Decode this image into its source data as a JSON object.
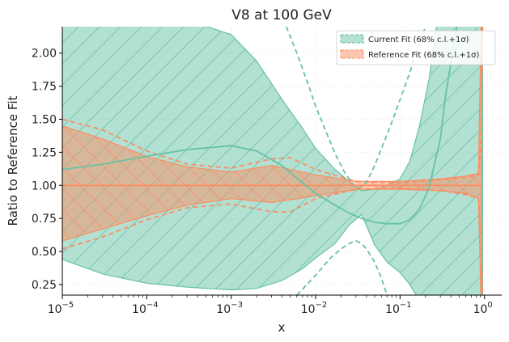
{
  "chart_data": {
    "type": "line",
    "title": "V8 at 100 GeV",
    "xlabel": "x",
    "ylabel": "Ratio to Reference Fit",
    "xscale": "log",
    "xlim": [
      1e-05,
      1.6
    ],
    "ylim": [
      0.17,
      2.2
    ],
    "x_ticks": [
      {
        "value": 1e-05,
        "base": "10",
        "exp": "−5"
      },
      {
        "value": 0.0001,
        "base": "10",
        "exp": "−4"
      },
      {
        "value": 0.001,
        "base": "10",
        "exp": "−3"
      },
      {
        "value": 0.01,
        "base": "10",
        "exp": "−2"
      },
      {
        "value": 0.1,
        "base": "10",
        "exp": "−1"
      },
      {
        "value": 1,
        "base": "10",
        "exp": "0"
      }
    ],
    "y_ticks": [
      "0.25",
      "0.50",
      "0.75",
      "1.00",
      "1.25",
      "1.50",
      "1.75",
      "2.00"
    ],
    "grid": true,
    "legend_position": "top-right",
    "colors": {
      "current": "#66c2a5",
      "reference": "#fc8d62"
    },
    "legend": [
      {
        "label": "Current Fit (68% c.l.+1σ)",
        "color": "#66c2a5"
      },
      {
        "label": "Reference Fit (68% c.l.+1σ)",
        "color": "#fc8d62"
      }
    ],
    "series": [
      {
        "name": "Current Fit (68% c.l.+1σ)",
        "x": [
          1e-05,
          3e-05,
          0.0001,
          0.0003,
          0.001,
          0.002,
          0.004,
          0.007,
          0.01,
          0.017,
          0.025,
          0.035,
          0.05,
          0.07,
          0.1,
          0.13,
          0.17,
          0.22,
          0.3,
          0.35,
          0.5,
          0.7,
          0.8,
          0.9,
          0.95
        ],
        "central": [
          1.12,
          1.16,
          1.22,
          1.27,
          1.3,
          1.26,
          1.15,
          1.02,
          0.94,
          0.85,
          0.79,
          0.75,
          0.72,
          0.71,
          0.71,
          0.74,
          0.82,
          0.98,
          1.35,
          1.7,
          2.3,
          2.4,
          2.4,
          2.4,
          2.4
        ],
        "band_upper": [
          2.4,
          2.4,
          2.4,
          2.25,
          2.14,
          1.94,
          1.65,
          1.43,
          1.28,
          1.12,
          1.03,
          0.96,
          0.97,
          1.0,
          1.05,
          1.18,
          1.45,
          1.8,
          2.4,
          2.4,
          2.4,
          2.4,
          2.4,
          2.4,
          2.4
        ],
        "band_lower": [
          0.44,
          0.33,
          0.26,
          0.23,
          0.21,
          0.22,
          0.28,
          0.37,
          0.45,
          0.56,
          0.7,
          0.78,
          0.55,
          0.42,
          0.34,
          0.25,
          0.13,
          0.05,
          0.0,
          0.0,
          0.0,
          0.0,
          0.0,
          0.0,
          0.0
        ],
        "dashed_upper": {
          "x": [
            0.0045,
            0.006,
            0.008,
            0.01,
            0.013,
            0.017,
            0.022,
            0.028,
            0.033,
            0.04,
            0.05,
            0.065,
            0.08,
            0.1,
            0.13,
            0.17,
            0.2
          ],
          "y": [
            2.2,
            2.0,
            1.78,
            1.6,
            1.42,
            1.24,
            1.1,
            1.0,
            0.98,
            1.02,
            1.15,
            1.33,
            1.48,
            1.65,
            1.85,
            2.08,
            2.2
          ]
        },
        "dashed_lower": {
          "x": [
            0.006,
            0.01,
            0.015,
            0.02,
            0.025,
            0.03,
            0.035,
            0.04,
            0.05,
            0.06,
            0.07
          ],
          "y": [
            0.17,
            0.32,
            0.45,
            0.52,
            0.56,
            0.58,
            0.56,
            0.52,
            0.42,
            0.3,
            0.17
          ]
        }
      },
      {
        "name": "Reference Fit (68% c.l.+1σ)",
        "x": [
          1e-05,
          3e-05,
          0.0001,
          0.0003,
          0.001,
          0.003,
          0.01,
          0.03,
          0.1,
          0.3,
          0.6,
          0.85,
          0.92
        ],
        "central": [
          1.0,
          1.0,
          1.0,
          1.0,
          1.0,
          1.0,
          1.0,
          1.0,
          1.0,
          1.0,
          1.0,
          1.0,
          1.0
        ],
        "band_upper": [
          1.45,
          1.35,
          1.22,
          1.14,
          1.1,
          1.15,
          1.08,
          1.03,
          1.03,
          1.05,
          1.07,
          1.09,
          2.4
        ],
        "band_lower": [
          0.58,
          0.67,
          0.77,
          0.85,
          0.9,
          0.87,
          0.92,
          0.97,
          0.97,
          0.96,
          0.94,
          0.9,
          0.0
        ],
        "dashed_upper": {
          "x": [
            1e-05,
            3e-05,
            0.0001,
            0.0003,
            0.001,
            0.003,
            0.005,
            0.01,
            0.03,
            0.1,
            0.3,
            0.6,
            0.85,
            0.9,
            0.95
          ],
          "y": [
            1.5,
            1.42,
            1.26,
            1.16,
            1.13,
            1.2,
            1.21,
            1.12,
            1.03,
            1.02,
            1.04,
            1.06,
            1.08,
            1.3,
            2.2
          ]
        },
        "dashed_lower": {
          "x": [
            1e-05,
            3e-05,
            0.0001,
            0.0003,
            0.001,
            0.003,
            0.005,
            0.01,
            0.03,
            0.1,
            0.3,
            0.6,
            0.85,
            0.9,
            0.95
          ],
          "y": [
            0.52,
            0.61,
            0.74,
            0.83,
            0.86,
            0.8,
            0.8,
            0.9,
            0.97,
            0.98,
            0.96,
            0.93,
            0.9,
            0.6,
            0.17
          ]
        }
      }
    ]
  }
}
